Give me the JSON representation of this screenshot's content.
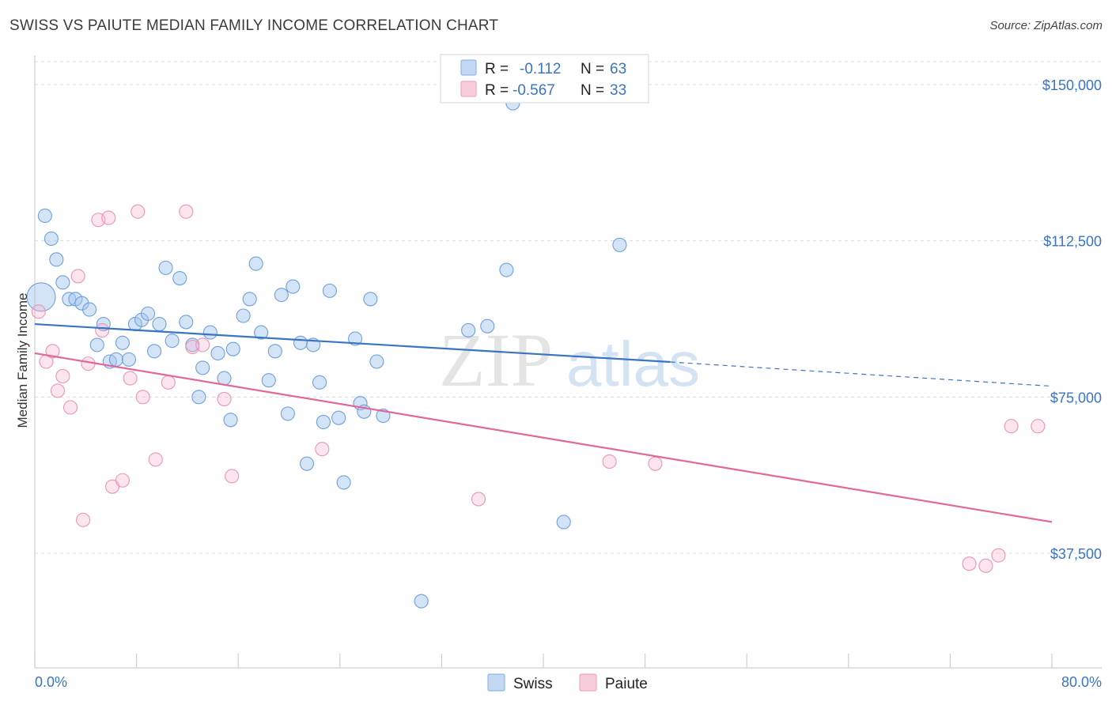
{
  "header": {
    "title": "SWISS VS PAIUTE MEDIAN FAMILY INCOME CORRELATION CHART",
    "source": "Source: ZipAtlas.com"
  },
  "watermark": {
    "zip": "ZIP",
    "atlas": "atlas"
  },
  "legend_top": [
    {
      "r_label": "R =",
      "r_value": "-0.112",
      "n_label": "N =",
      "n_value": "63",
      "color": "#8fb6e8"
    },
    {
      "r_label": "R =",
      "r_value": "-0.567",
      "n_label": "N =",
      "n_value": "33",
      "color": "#f2a7c0"
    }
  ],
  "legend_bottom": [
    {
      "label": "Swiss",
      "color": "#8fb6e8"
    },
    {
      "label": "Paiute",
      "color": "#f2a7c0"
    }
  ],
  "chart_data": {
    "type": "scatter",
    "title": "SWISS VS PAIUTE MEDIAN FAMILY INCOME CORRELATION CHART",
    "xlabel": "",
    "ylabel": "Median Family Income",
    "xlim": [
      0,
      80
    ],
    "ylim": [
      10000,
      157000
    ],
    "x_tick_labels": [
      "0.0%",
      "80.0%"
    ],
    "y_ticks": [
      37500,
      75000,
      112500,
      150000
    ],
    "y_tick_labels": [
      "$37,500",
      "$75,000",
      "$112,500",
      "$150,000"
    ],
    "grid": true,
    "legend_position": "top-center",
    "series": [
      {
        "name": "Swiss",
        "color": "#8fb6e8",
        "trend": {
          "x": [
            0,
            50,
            80
          ],
          "y": [
            92500,
            83400,
            77600
          ]
        },
        "points": [
          {
            "x": 0.5,
            "y": 99000,
            "big": true
          },
          {
            "x": 0.8,
            "y": 118500
          },
          {
            "x": 1.3,
            "y": 113000
          },
          {
            "x": 1.7,
            "y": 108000
          },
          {
            "x": 2.2,
            "y": 102500
          },
          {
            "x": 2.7,
            "y": 98500
          },
          {
            "x": 3.2,
            "y": 98500
          },
          {
            "x": 3.7,
            "y": 97500
          },
          {
            "x": 4.3,
            "y": 96000
          },
          {
            "x": 4.9,
            "y": 87500
          },
          {
            "x": 5.4,
            "y": 92500
          },
          {
            "x": 5.9,
            "y": 83500
          },
          {
            "x": 6.4,
            "y": 84000
          },
          {
            "x": 6.9,
            "y": 88000
          },
          {
            "x": 7.4,
            "y": 84000
          },
          {
            "x": 7.9,
            "y": 92500
          },
          {
            "x": 8.4,
            "y": 93500
          },
          {
            "x": 8.9,
            "y": 95000
          },
          {
            "x": 9.4,
            "y": 86000
          },
          {
            "x": 9.8,
            "y": 92500
          },
          {
            "x": 10.3,
            "y": 106000
          },
          {
            "x": 10.8,
            "y": 88500
          },
          {
            "x": 11.4,
            "y": 103500
          },
          {
            "x": 11.9,
            "y": 93000
          },
          {
            "x": 12.4,
            "y": 87500
          },
          {
            "x": 12.9,
            "y": 75000
          },
          {
            "x": 13.2,
            "y": 82000
          },
          {
            "x": 13.8,
            "y": 90500
          },
          {
            "x": 14.4,
            "y": 85500
          },
          {
            "x": 14.9,
            "y": 79500
          },
          {
            "x": 15.4,
            "y": 69500
          },
          {
            "x": 15.6,
            "y": 86500
          },
          {
            "x": 16.4,
            "y": 94500
          },
          {
            "x": 16.9,
            "y": 98500
          },
          {
            "x": 17.4,
            "y": 107000
          },
          {
            "x": 17.8,
            "y": 90500
          },
          {
            "x": 18.4,
            "y": 79000
          },
          {
            "x": 18.9,
            "y": 86000
          },
          {
            "x": 19.4,
            "y": 99500
          },
          {
            "x": 19.9,
            "y": 71000
          },
          {
            "x": 20.3,
            "y": 101500
          },
          {
            "x": 20.9,
            "y": 88000
          },
          {
            "x": 21.4,
            "y": 59000
          },
          {
            "x": 21.9,
            "y": 87500
          },
          {
            "x": 22.4,
            "y": 78500
          },
          {
            "x": 22.7,
            "y": 69000
          },
          {
            "x": 23.2,
            "y": 100500
          },
          {
            "x": 23.9,
            "y": 70000
          },
          {
            "x": 24.3,
            "y": 54500
          },
          {
            "x": 25.2,
            "y": 89000
          },
          {
            "x": 25.6,
            "y": 73500
          },
          {
            "x": 25.9,
            "y": 71500
          },
          {
            "x": 26.4,
            "y": 98500
          },
          {
            "x": 26.9,
            "y": 83500
          },
          {
            "x": 27.4,
            "y": 70500
          },
          {
            "x": 30.4,
            "y": 26000
          },
          {
            "x": 34.1,
            "y": 91000
          },
          {
            "x": 35.6,
            "y": 92000
          },
          {
            "x": 37.1,
            "y": 105500
          },
          {
            "x": 37.6,
            "y": 145500
          },
          {
            "x": 38.6,
            "y": 148000
          },
          {
            "x": 41.6,
            "y": 45000
          },
          {
            "x": 46.0,
            "y": 111500
          }
        ]
      },
      {
        "name": "Paiute",
        "color": "#f2a7c0",
        "trend": {
          "x": [
            0,
            80
          ],
          "y": [
            85500,
            45000
          ]
        },
        "points": [
          {
            "x": 0.3,
            "y": 95500
          },
          {
            "x": 0.9,
            "y": 83500
          },
          {
            "x": 1.4,
            "y": 86000
          },
          {
            "x": 1.8,
            "y": 76500
          },
          {
            "x": 2.2,
            "y": 80000
          },
          {
            "x": 2.8,
            "y": 72500
          },
          {
            "x": 3.4,
            "y": 104000
          },
          {
            "x": 3.8,
            "y": 45500
          },
          {
            "x": 4.2,
            "y": 83000
          },
          {
            "x": 5.0,
            "y": 117500
          },
          {
            "x": 5.3,
            "y": 91000
          },
          {
            "x": 5.8,
            "y": 118000
          },
          {
            "x": 6.1,
            "y": 53500
          },
          {
            "x": 6.9,
            "y": 55000
          },
          {
            "x": 7.5,
            "y": 79500
          },
          {
            "x": 8.1,
            "y": 119500
          },
          {
            "x": 8.5,
            "y": 75000
          },
          {
            "x": 9.5,
            "y": 60000
          },
          {
            "x": 10.5,
            "y": 78500
          },
          {
            "x": 11.9,
            "y": 119500
          },
          {
            "x": 12.4,
            "y": 87000
          },
          {
            "x": 13.2,
            "y": 87500
          },
          {
            "x": 14.9,
            "y": 74500
          },
          {
            "x": 15.5,
            "y": 56000
          },
          {
            "x": 22.6,
            "y": 62500
          },
          {
            "x": 34.9,
            "y": 50500
          },
          {
            "x": 45.2,
            "y": 59500
          },
          {
            "x": 48.8,
            "y": 59000
          },
          {
            "x": 73.5,
            "y": 35000
          },
          {
            "x": 74.8,
            "y": 34500
          },
          {
            "x": 75.8,
            "y": 37000
          },
          {
            "x": 76.8,
            "y": 68000
          },
          {
            "x": 78.9,
            "y": 68000
          }
        ]
      }
    ]
  }
}
